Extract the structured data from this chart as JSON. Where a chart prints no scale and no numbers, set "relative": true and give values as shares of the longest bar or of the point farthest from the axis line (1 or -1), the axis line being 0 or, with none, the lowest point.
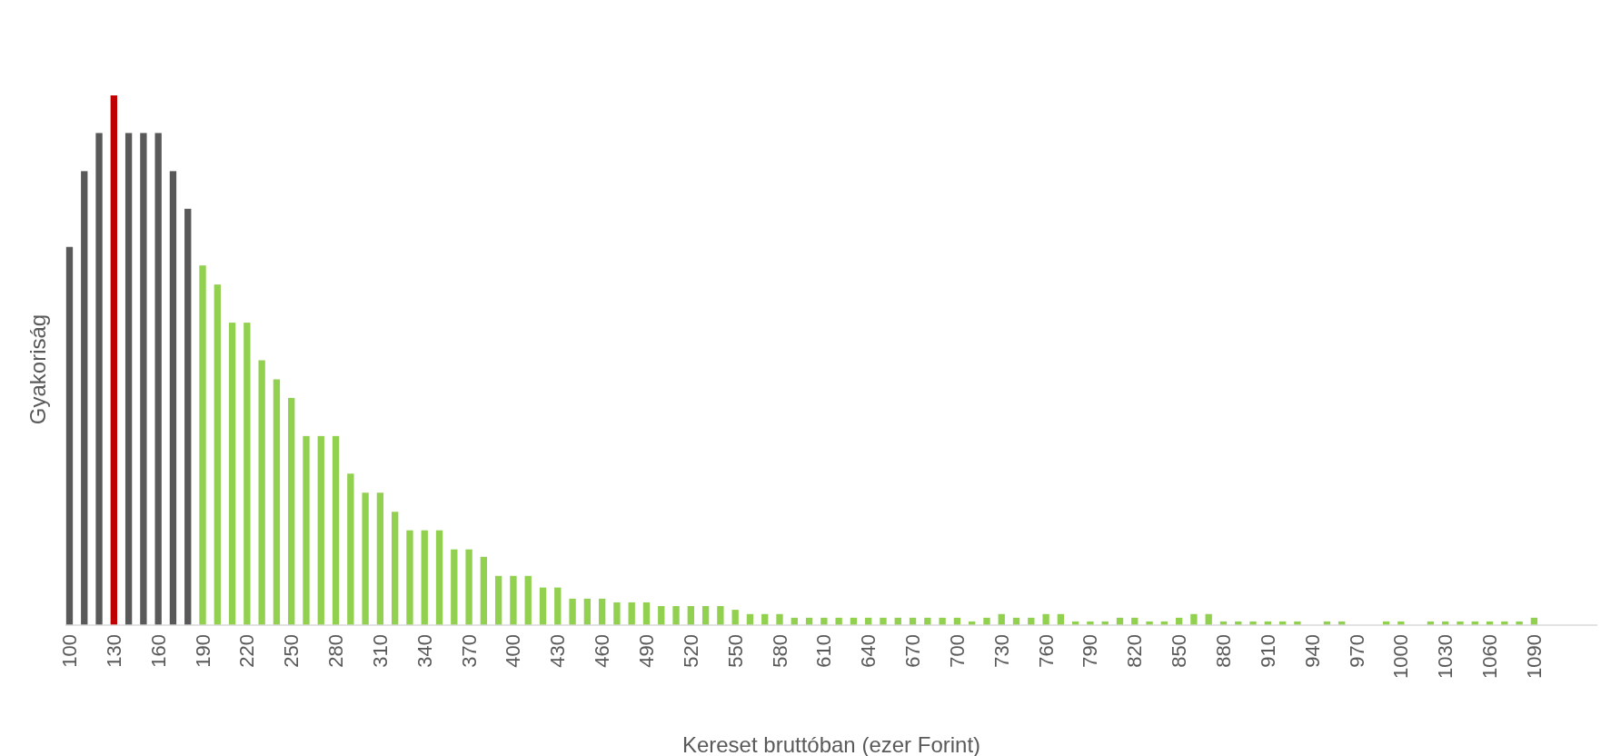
{
  "chart_data": {
    "type": "bar",
    "relative": true,
    "xlabel": "Kereset bruttóban (ezer Forint)",
    "ylabel": "Gyakoriság",
    "categories": [
      "100",
      null,
      null,
      "130",
      null,
      null,
      "160",
      null,
      null,
      "190",
      null,
      null,
      "220",
      null,
      null,
      "250",
      null,
      null,
      "280",
      null,
      null,
      "310",
      null,
      null,
      "340",
      null,
      null,
      "370",
      null,
      null,
      "400",
      null,
      null,
      "430",
      null,
      null,
      "460",
      null,
      null,
      "490",
      null,
      null,
      "520",
      null,
      null,
      "550",
      null,
      null,
      "580",
      null,
      null,
      "610",
      null,
      null,
      "640",
      null,
      null,
      "670",
      null,
      null,
      "700",
      null,
      null,
      "730",
      null,
      null,
      "760",
      null,
      null,
      "790",
      null,
      null,
      "820",
      null,
      null,
      "850",
      null,
      null,
      "880",
      null,
      null,
      "910",
      null,
      null,
      "940",
      null,
      null,
      "970",
      null,
      null,
      "1000",
      null,
      null,
      "1030",
      null,
      null,
      "1060",
      null,
      null,
      "1090",
      null,
      null,
      null,
      null
    ],
    "values": [
      0.714,
      0.857,
      0.929,
      1,
      0.929,
      0.929,
      0.929,
      0.857,
      0.786,
      0.679,
      0.643,
      0.571,
      0.571,
      0.5,
      0.464,
      0.429,
      0.357,
      0.357,
      0.357,
      0.286,
      0.25,
      0.25,
      0.214,
      0.179,
      0.179,
      0.179,
      0.143,
      0.143,
      0.129,
      0.093,
      0.093,
      0.093,
      0.071,
      0.071,
      0.05,
      0.05,
      0.05,
      0.043,
      0.043,
      0.043,
      0.036,
      0.036,
      0.036,
      0.036,
      0.036,
      0.029,
      0.021,
      0.021,
      0.021,
      0.014,
      0.014,
      0.014,
      0.014,
      0.014,
      0.014,
      0.014,
      0.014,
      0.014,
      0.014,
      0.014,
      0.014,
      0.007,
      0.014,
      0.021,
      0.014,
      0.014,
      0.021,
      0.021,
      0.007,
      0.007,
      0.007,
      0.014,
      0.014,
      0.007,
      0.007,
      0.014,
      0.021,
      0.021,
      0.007,
      0.007,
      0.007,
      0.007,
      0.007,
      0.007,
      0,
      0.007,
      0.007,
      0,
      0,
      0.007,
      0.007,
      0,
      0.007,
      0.007,
      0.007,
      0.007,
      0.007,
      0.007,
      0.007,
      0.014,
      null,
      null,
      null,
      null
    ],
    "colors": [
      "#595959",
      "#595959",
      "#595959",
      "#c00000",
      "#595959",
      "#595959",
      "#595959",
      "#595959",
      "#595959",
      "#92d050",
      "#92d050",
      "#92d050",
      "#92d050",
      "#92d050",
      "#92d050",
      "#92d050",
      "#92d050",
      "#92d050",
      "#92d050",
      "#92d050",
      "#92d050",
      "#92d050",
      "#92d050",
      "#92d050",
      "#92d050",
      "#92d050",
      "#92d050",
      "#92d050",
      "#92d050",
      "#92d050",
      "#92d050",
      "#92d050",
      "#92d050",
      "#92d050",
      "#92d050",
      "#92d050",
      "#92d050",
      "#92d050",
      "#92d050",
      "#92d050",
      "#92d050",
      "#92d050",
      "#92d050",
      "#92d050",
      "#92d050",
      "#92d050",
      "#92d050",
      "#92d050",
      "#92d050",
      "#92d050",
      "#92d050",
      "#92d050",
      "#92d050",
      "#92d050",
      "#92d050",
      "#92d050",
      "#92d050",
      "#92d050",
      "#92d050",
      "#92d050",
      "#92d050",
      "#92d050",
      "#92d050",
      "#92d050",
      "#92d050",
      "#92d050",
      "#92d050",
      "#92d050",
      "#92d050",
      "#92d050",
      "#92d050",
      "#92d050",
      "#92d050",
      "#92d050",
      "#92d050",
      "#92d050",
      "#92d050",
      "#92d050",
      "#92d050",
      "#92d050",
      "#92d050",
      "#92d050",
      "#92d050",
      "#92d050",
      "#92d050",
      "#92d050",
      "#92d050",
      "#92d050",
      "#92d050",
      "#92d050",
      "#92d050",
      "#92d050",
      "#92d050",
      "#92d050",
      "#92d050",
      "#92d050",
      "#92d050",
      "#92d050",
      "#92d050",
      "#92d050",
      "#92d050",
      "#92d050",
      "#92d050",
      "#92d050"
    ]
  }
}
